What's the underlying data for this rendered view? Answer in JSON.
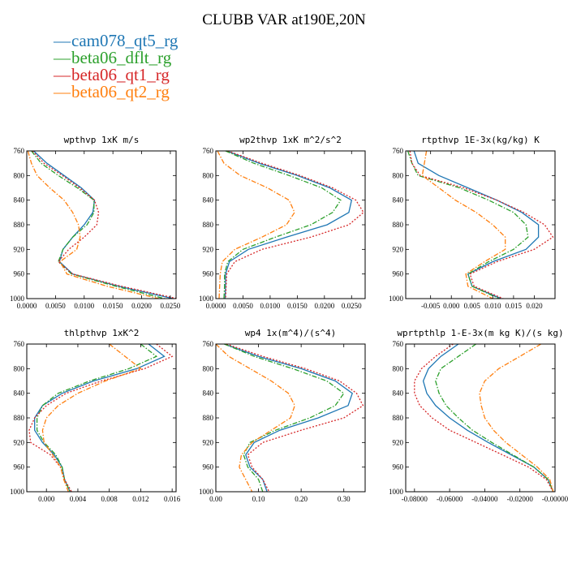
{
  "page_title": "CLUBB VAR at190E,20N",
  "legend": [
    {
      "symbol": "—",
      "label": "cam078_qt5_rg",
      "color": "#1f77b4"
    },
    {
      "symbol": "—",
      "label": "beta06_dflt_rg",
      "color": "#2ca02c"
    },
    {
      "symbol": "—",
      "label": "beta06_qt1_rg",
      "color": "#d62728"
    },
    {
      "symbol": "—",
      "label": "beta06_qt2_rg",
      "color": "#ff7f0e"
    }
  ],
  "series_styles": {
    "cam078_qt5_rg": {
      "color": "#1f77b4",
      "dash": "solid"
    },
    "beta06_dflt_rg": {
      "color": "#2ca02c",
      "dash": "dashdot"
    },
    "beta06_qt1_rg": {
      "color": "#d62728",
      "dash": "dotted"
    },
    "beta06_qt2_rg": {
      "color": "#ff7f0e",
      "dash": "dashdot"
    }
  },
  "chart_data": [
    {
      "type": "line",
      "title": "wpthvp  1xK m/s",
      "xlim": [
        0.0,
        0.026
      ],
      "ylim": [
        760,
        1000
      ],
      "y_reversed": true,
      "xticks": [
        0.0,
        0.005,
        0.01,
        0.015,
        0.02,
        0.025
      ],
      "xtick_labels": [
        "0.0000",
        "0.0050",
        "0.0100",
        "0.0150",
        "0.0200",
        "0.0250"
      ],
      "yticks": [
        760,
        800,
        840,
        880,
        920,
        960,
        1000
      ],
      "ytick_labels": [
        "760",
        "800",
        "840",
        "880",
        "920",
        "960",
        "1000"
      ],
      "y": [
        760,
        780,
        800,
        820,
        840,
        860,
        880,
        900,
        920,
        940,
        960,
        980,
        1000
      ],
      "series": [
        {
          "name": "cam078_qt5_rg",
          "values": [
            0.0012,
            0.0035,
            0.0065,
            0.0095,
            0.0118,
            0.0115,
            0.01,
            0.008,
            0.0063,
            0.0057,
            0.008,
            0.016,
            0.0255
          ]
        },
        {
          "name": "beta06_dflt_rg",
          "values": [
            0.0008,
            0.0025,
            0.0055,
            0.0088,
            0.0117,
            0.0117,
            0.0105,
            0.008,
            0.0063,
            0.0055,
            0.0078,
            0.0155,
            0.024
          ]
        },
        {
          "name": "beta06_qt1_rg",
          "values": [
            0.001,
            0.003,
            0.0062,
            0.0092,
            0.0118,
            0.0125,
            0.0122,
            0.01,
            0.0073,
            0.0055,
            0.008,
            0.0165,
            0.0262
          ]
        },
        {
          "name": "beta06_qt2_rg",
          "values": [
            0.0002,
            0.0008,
            0.0018,
            0.004,
            0.0065,
            0.008,
            0.009,
            0.0093,
            0.0087,
            0.0058,
            0.007,
            0.014,
            0.023
          ]
        }
      ]
    },
    {
      "type": "line",
      "title": "wp2thvp  1xK m^2/s^2",
      "xlim": [
        0.0,
        0.0275
      ],
      "ylim": [
        760,
        1000
      ],
      "y_reversed": true,
      "xticks": [
        0.0,
        0.005,
        0.01,
        0.015,
        0.02,
        0.025
      ],
      "xtick_labels": [
        "0.0000",
        "0.0050",
        "0.0100",
        "0.0150",
        "0.0200",
        "0.0250"
      ],
      "yticks": [
        760,
        800,
        840,
        880,
        920,
        960,
        1000
      ],
      "ytick_labels": [
        "760",
        "800",
        "840",
        "880",
        "920",
        "960",
        "1000"
      ],
      "y": [
        760,
        780,
        800,
        820,
        840,
        860,
        880,
        900,
        920,
        940,
        960,
        980,
        1000
      ],
      "series": [
        {
          "name": "cam078_qt5_rg",
          "values": [
            0.002,
            0.008,
            0.015,
            0.021,
            0.025,
            0.0245,
            0.0205,
            0.013,
            0.006,
            0.0025,
            0.0018,
            0.0018,
            0.0017
          ]
        },
        {
          "name": "beta06_dflt_rg",
          "values": [
            0.0018,
            0.007,
            0.0135,
            0.0195,
            0.023,
            0.0215,
            0.0175,
            0.011,
            0.005,
            0.0022,
            0.0016,
            0.0016,
            0.0015
          ]
        },
        {
          "name": "beta06_qt1_rg",
          "values": [
            0.0022,
            0.0085,
            0.0155,
            0.0215,
            0.0258,
            0.0272,
            0.0245,
            0.0175,
            0.0085,
            0.0035,
            0.002,
            0.0019,
            0.0018
          ]
        },
        {
          "name": "beta06_qt2_rg",
          "values": [
            0.0003,
            0.0015,
            0.0045,
            0.0095,
            0.0135,
            0.0145,
            0.013,
            0.0085,
            0.0035,
            0.0012,
            0.0008,
            0.0007,
            0.0006
          ]
        }
      ]
    },
    {
      "type": "line",
      "title": "rtpthvp  1E-3x(kg/kg) K",
      "xlim": [
        -0.011,
        0.025
      ],
      "ylim": [
        760,
        1000
      ],
      "y_reversed": true,
      "xticks": [
        -0.005,
        0.0,
        0.005,
        0.01,
        0.015,
        0.02
      ],
      "xtick_labels": [
        "-0.005",
        "0.000",
        "0.005",
        "0.010",
        "0.015",
        "0.020"
      ],
      "yticks": [
        760,
        800,
        840,
        880,
        920,
        960,
        1000
      ],
      "ytick_labels": [
        "760",
        "800",
        "840",
        "880",
        "920",
        "960",
        "1000"
      ],
      "y": [
        760,
        780,
        800,
        820,
        840,
        860,
        880,
        900,
        920,
        940,
        960,
        980,
        1000
      ],
      "series": [
        {
          "name": "cam078_qt5_rg",
          "values": [
            -0.009,
            -0.008,
            -0.003,
            0.004,
            0.011,
            0.017,
            0.021,
            0.021,
            0.018,
            0.01,
            0.004,
            0.005,
            0.012
          ]
        },
        {
          "name": "beta06_dflt_rg",
          "values": [
            -0.0105,
            -0.0095,
            -0.008,
            0.002,
            0.009,
            0.015,
            0.018,
            0.0185,
            0.015,
            0.009,
            0.004,
            0.005,
            0.0115
          ]
        },
        {
          "name": "beta06_qt1_rg",
          "values": [
            -0.01,
            -0.0095,
            -0.0075,
            0.003,
            0.011,
            0.0175,
            0.0225,
            0.0245,
            0.02,
            0.011,
            0.0045,
            0.0055,
            0.0125
          ]
        },
        {
          "name": "beta06_qt2_rg",
          "values": [
            -0.006,
            -0.0065,
            -0.007,
            -0.003,
            0.001,
            0.006,
            0.01,
            0.013,
            0.013,
            0.008,
            0.0035,
            0.004,
            0.01
          ]
        }
      ]
    },
    {
      "type": "line",
      "title": "thlpthvp  1xK^2",
      "xlim": [
        -0.0025,
        0.0165
      ],
      "ylim": [
        760,
        1000
      ],
      "y_reversed": true,
      "xticks": [
        0.0,
        0.004,
        0.008,
        0.012,
        0.016
      ],
      "xtick_labels": [
        "0.000",
        "0.004",
        "0.008",
        "0.012",
        "0.016"
      ],
      "yticks": [
        760,
        800,
        840,
        880,
        920,
        960,
        1000
      ],
      "ytick_labels": [
        "760",
        "800",
        "840",
        "880",
        "920",
        "960",
        "1000"
      ],
      "y": [
        760,
        780,
        800,
        820,
        840,
        860,
        880,
        900,
        920,
        940,
        960,
        980,
        1000
      ],
      "series": [
        {
          "name": "cam078_qt5_rg",
          "values": [
            0.013,
            0.015,
            0.0115,
            0.006,
            0.002,
            -0.0005,
            -0.0015,
            -0.0015,
            -0.0005,
            0.001,
            0.002,
            0.0023,
            0.003
          ]
        },
        {
          "name": "beta06_dflt_rg",
          "values": [
            0.012,
            0.014,
            0.0105,
            0.0055,
            0.0015,
            -0.0005,
            -0.0012,
            -0.0012,
            -0.0003,
            0.0012,
            0.002,
            0.0023,
            0.003
          ]
        },
        {
          "name": "beta06_qt1_rg",
          "values": [
            0.014,
            0.016,
            0.0125,
            0.007,
            0.0025,
            0.0,
            -0.0015,
            -0.0022,
            -0.002,
            0.0005,
            0.0018,
            0.0023,
            0.0032
          ]
        },
        {
          "name": "beta06_qt2_rg",
          "values": [
            0.008,
            0.01,
            0.012,
            0.0075,
            0.004,
            0.0015,
            0.0,
            -0.0005,
            -0.0003,
            0.0008,
            0.0018,
            0.0022,
            0.0028
          ]
        }
      ]
    },
    {
      "type": "line",
      "title": "wp4  1x(m^4)/(s^4)",
      "xlim": [
        0.0,
        0.35
      ],
      "ylim": [
        760,
        1000
      ],
      "y_reversed": true,
      "xticks": [
        0.0,
        0.1,
        0.2,
        0.3
      ],
      "xtick_labels": [
        "0.00",
        "0.10",
        "0.20",
        "0.30"
      ],
      "yticks": [
        760,
        800,
        840,
        880,
        920,
        960,
        1000
      ],
      "ytick_labels": [
        "760",
        "800",
        "840",
        "880",
        "920",
        "960",
        "1000"
      ],
      "y": [
        760,
        780,
        800,
        820,
        840,
        860,
        880,
        900,
        920,
        940,
        960,
        980,
        1000
      ],
      "series": [
        {
          "name": "cam078_qt5_rg",
          "values": [
            0.02,
            0.1,
            0.2,
            0.28,
            0.32,
            0.31,
            0.24,
            0.15,
            0.09,
            0.07,
            0.08,
            0.11,
            0.12
          ]
        },
        {
          "name": "beta06_dflt_rg",
          "values": [
            0.02,
            0.09,
            0.18,
            0.26,
            0.3,
            0.28,
            0.22,
            0.14,
            0.08,
            0.065,
            0.075,
            0.1,
            0.11
          ]
        },
        {
          "name": "beta06_qt1_rg",
          "values": [
            0.025,
            0.11,
            0.21,
            0.29,
            0.33,
            0.345,
            0.3,
            0.2,
            0.11,
            0.075,
            0.085,
            0.11,
            0.125
          ]
        },
        {
          "name": "beta06_qt2_rg",
          "values": [
            0.0,
            0.03,
            0.08,
            0.13,
            0.17,
            0.185,
            0.175,
            0.13,
            0.085,
            0.06,
            0.055,
            0.07,
            0.085
          ]
        }
      ]
    },
    {
      "type": "line",
      "title": "wprtpthlp  1-E-3x(m kg K)/(s kg)",
      "xlim": [
        -0.085,
        0.0
      ],
      "ylim": [
        760,
        1000
      ],
      "y_reversed": true,
      "xticks": [
        -0.08,
        -0.06,
        -0.04,
        -0.02,
        0.0
      ],
      "xtick_labels": [
        "-0.08000",
        "-0.06000",
        "-0.04000",
        "-0.02000",
        "-0.00000"
      ],
      "yticks": [
        760,
        800,
        840,
        880,
        920,
        960,
        1000
      ],
      "ytick_labels": [
        "760",
        "800",
        "840",
        "880",
        "920",
        "960",
        "1000"
      ],
      "y": [
        760,
        780,
        800,
        820,
        840,
        860,
        880,
        900,
        920,
        940,
        960,
        980,
        1000
      ],
      "series": [
        {
          "name": "cam078_qt5_rg",
          "values": [
            -0.055,
            -0.065,
            -0.072,
            -0.075,
            -0.073,
            -0.068,
            -0.06,
            -0.05,
            -0.038,
            -0.025,
            -0.012,
            -0.004,
            -0.001
          ]
        },
        {
          "name": "beta06_dflt_rg",
          "values": [
            -0.045,
            -0.055,
            -0.065,
            -0.068,
            -0.066,
            -0.062,
            -0.055,
            -0.047,
            -0.036,
            -0.024,
            -0.012,
            -0.004,
            -0.001
          ]
        },
        {
          "name": "beta06_qt1_rg",
          "values": [
            -0.058,
            -0.068,
            -0.076,
            -0.08,
            -0.08,
            -0.077,
            -0.07,
            -0.06,
            -0.045,
            -0.03,
            -0.015,
            -0.005,
            -0.001
          ]
        },
        {
          "name": "beta06_qt2_rg",
          "values": [
            -0.008,
            -0.02,
            -0.032,
            -0.04,
            -0.043,
            -0.042,
            -0.04,
            -0.035,
            -0.028,
            -0.019,
            -0.01,
            -0.003,
            -0.001
          ]
        }
      ]
    }
  ]
}
